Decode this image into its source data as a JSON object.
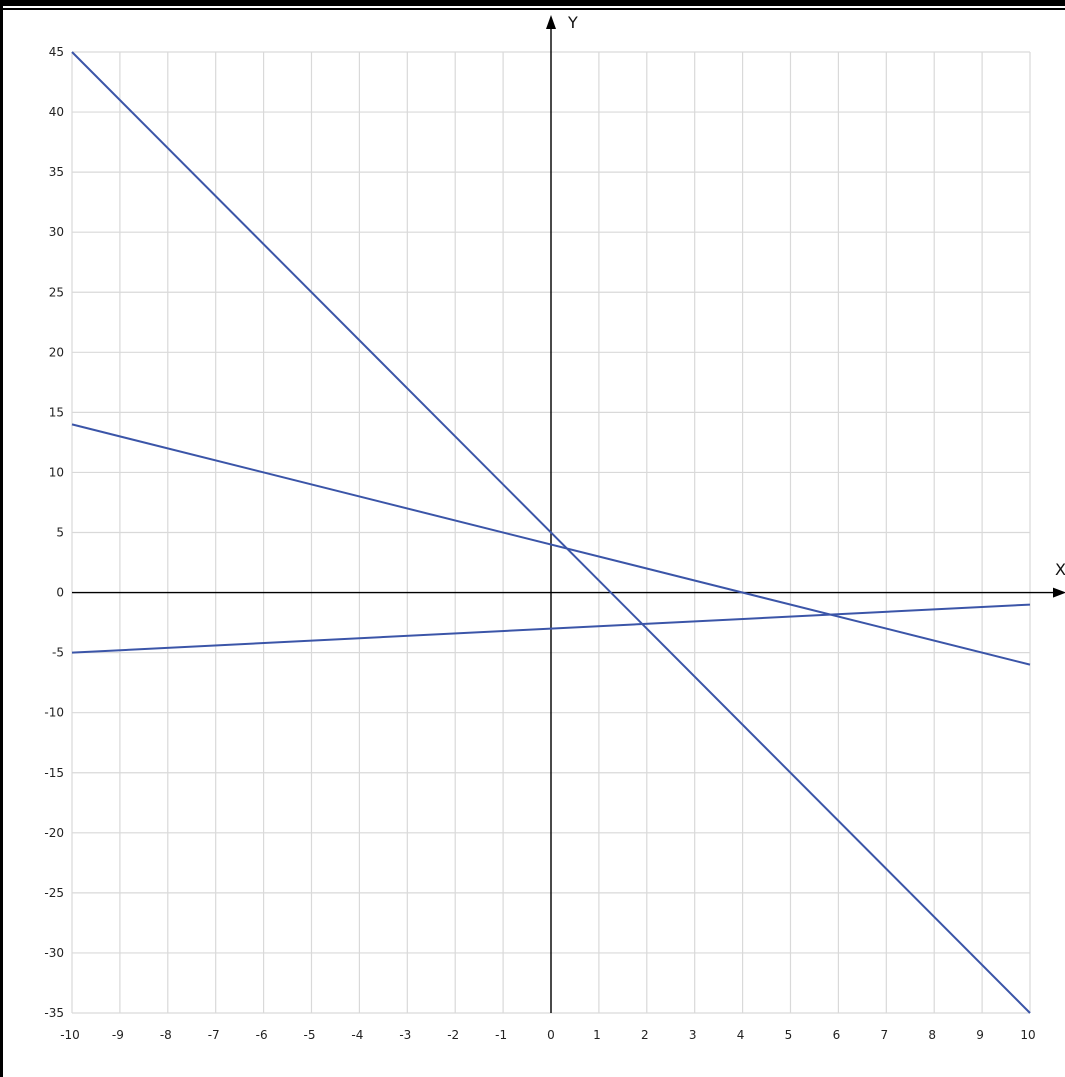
{
  "chart_data": {
    "type": "line",
    "title": "",
    "xlabel": "X",
    "ylabel": "Y",
    "xlim": [
      -10,
      10
    ],
    "ylim": [
      -35,
      45
    ],
    "grid": true,
    "x_ticks": [
      -10,
      -9,
      -8,
      -7,
      -6,
      -5,
      -4,
      -3,
      -2,
      -1,
      0,
      1,
      2,
      3,
      4,
      5,
      6,
      7,
      8,
      9,
      10
    ],
    "y_ticks": [
      -35,
      -30,
      -25,
      -20,
      -15,
      -10,
      -5,
      0,
      5,
      10,
      15,
      20,
      25,
      30,
      35,
      40,
      45
    ],
    "series": [
      {
        "x": [
          -10,
          10
        ],
        "y": [
          45,
          -35
        ]
      },
      {
        "x": [
          -10,
          10
        ],
        "y": [
          14,
          -6
        ]
      },
      {
        "x": [
          -10,
          10
        ],
        "y": [
          -5,
          -1
        ]
      }
    ],
    "line_color": "#3b55a8"
  }
}
